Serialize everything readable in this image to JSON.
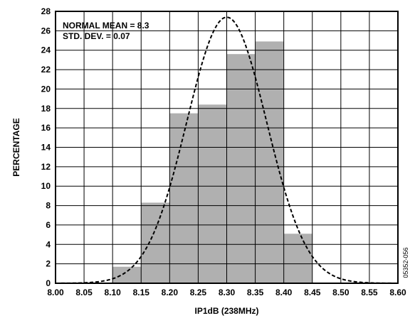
{
  "chart_data": {
    "type": "bar",
    "xlabel": "IP1dB (238MHz)",
    "ylabel": "PERCENTAGE",
    "xlim": [
      8.0,
      8.6
    ],
    "ylim": [
      0,
      28
    ],
    "grid": true,
    "x_ticks": [
      "8.00",
      "8.05",
      "8.10",
      "8.15",
      "8.20",
      "8.25",
      "8.30",
      "8.35",
      "8.40",
      "8.45",
      "8.50",
      "8.55",
      "8.60"
    ],
    "y_ticks": [
      "0",
      "2",
      "4",
      "6",
      "8",
      "10",
      "12",
      "14",
      "16",
      "18",
      "20",
      "22",
      "24",
      "26",
      "28"
    ],
    "bins": [
      {
        "start": 8.1,
        "end": 8.15,
        "value": 1.7
      },
      {
        "start": 8.15,
        "end": 8.2,
        "value": 8.3
      },
      {
        "start": 8.2,
        "end": 8.25,
        "value": 17.5
      },
      {
        "start": 8.25,
        "end": 8.3,
        "value": 18.4
      },
      {
        "start": 8.3,
        "end": 8.35,
        "value": 23.6
      },
      {
        "start": 8.35,
        "end": 8.4,
        "value": 24.9
      },
      {
        "start": 8.4,
        "end": 8.45,
        "value": 5.1
      }
    ],
    "normal_fit": {
      "mean": 8.3,
      "std": 0.07,
      "peak": 27.4,
      "style": "dashed"
    },
    "annotations": [
      "NORMAL MEAN = 8.3",
      "STD. DEV. = 0.07"
    ],
    "figure_id": "05352-056",
    "bar_color": "#b0b0b0"
  }
}
